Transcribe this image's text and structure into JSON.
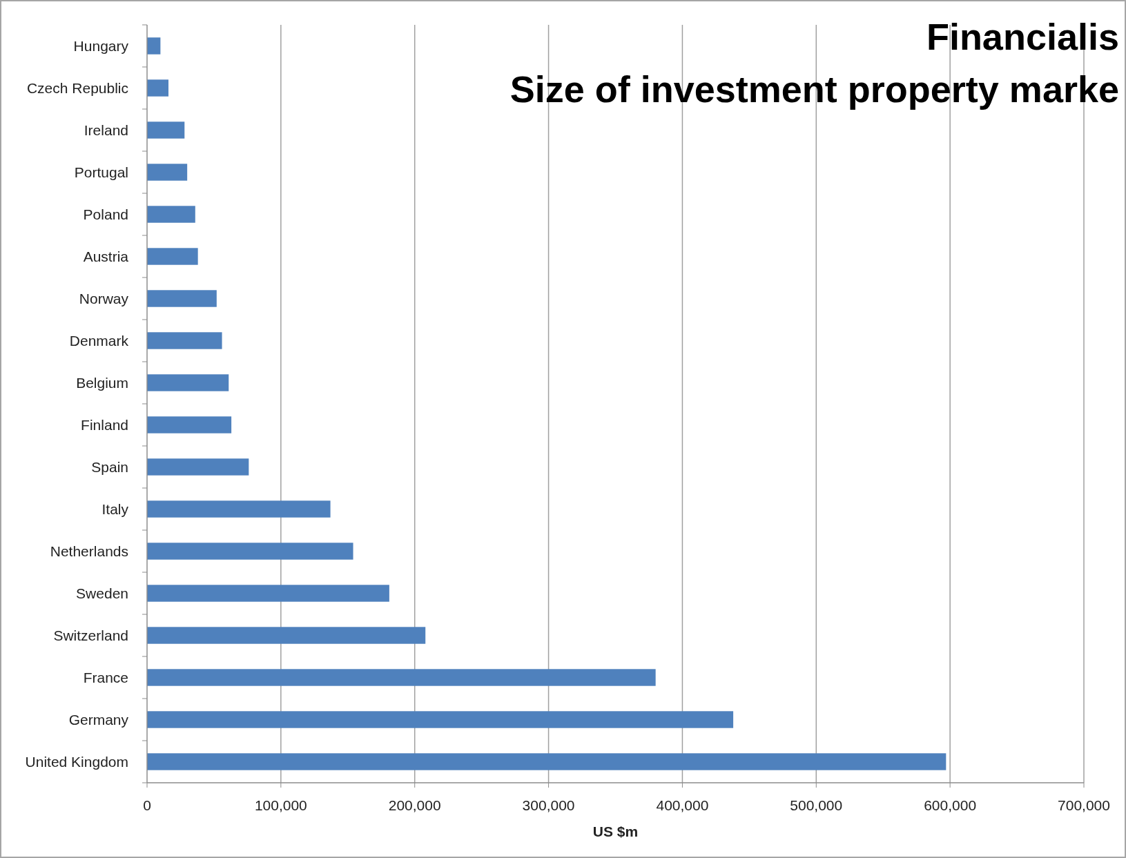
{
  "chart_data": {
    "type": "bar",
    "orientation": "horizontal",
    "title": "Financialis",
    "subtitle": "Size of investment property marke",
    "xlabel": "US $m",
    "categories": [
      "Hungary",
      "Czech Republic",
      "Ireland",
      "Portugal",
      "Poland",
      "Austria",
      "Norway",
      "Denmark",
      "Belgium",
      "Finland",
      "Spain",
      "Italy",
      "Netherlands",
      "Sweden",
      "Switzerland",
      "France",
      "Germany",
      "United Kingdom"
    ],
    "values": [
      10000,
      16000,
      28000,
      30000,
      36000,
      38000,
      52000,
      56000,
      61000,
      63000,
      76000,
      137000,
      154000,
      181000,
      208000,
      380000,
      438000,
      597000
    ],
    "color": "#4f81bd",
    "xlim": [
      0,
      700000
    ],
    "xticks": [
      {
        "value": 0,
        "label": "0"
      },
      {
        "value": 100000,
        "label": "100,000"
      },
      {
        "value": 200000,
        "label": "200,000"
      },
      {
        "value": 300000,
        "label": "300,000"
      },
      {
        "value": 400000,
        "label": "400,000"
      },
      {
        "value": 500000,
        "label": "500,000"
      },
      {
        "value": 600000,
        "label": "600,000"
      },
      {
        "value": 700000,
        "label": "700,000"
      }
    ],
    "grid": "x"
  }
}
